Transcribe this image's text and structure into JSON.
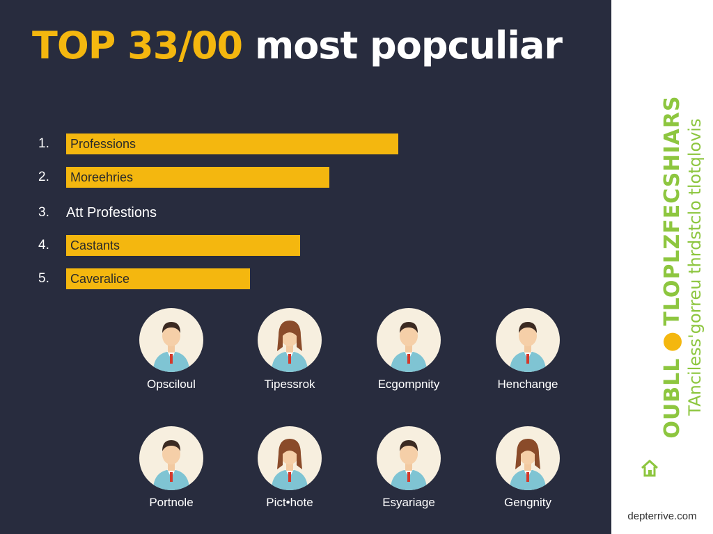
{
  "title": {
    "accent": "TOP 33/00",
    "main": " most popculiar"
  },
  "ranking": [
    {
      "number": "1.",
      "label": "Professions",
      "bar_fraction": 1.0
    },
    {
      "number": "2.",
      "label": "Moreehries",
      "bar_fraction": 0.792
    },
    {
      "number": "3.",
      "label": "Att Profestions",
      "bar_fraction": 0
    },
    {
      "number": "4.",
      "label": "Castants",
      "bar_fraction": 0.704
    },
    {
      "number": "5.",
      "label": "Caveralice",
      "bar_fraction": 0.553
    }
  ],
  "people": [
    {
      "label": "Opsciloul",
      "icon": "man-icon"
    },
    {
      "label": "Tipessrok",
      "icon": "woman-icon"
    },
    {
      "label": "Ecgompnity",
      "icon": "man-icon"
    },
    {
      "label": "Henchange",
      "icon": "man-icon"
    },
    {
      "label": "Portnole",
      "icon": "man-icon"
    },
    {
      "label": "Pict•hote",
      "icon": "woman-icon"
    },
    {
      "label": "Esyariage",
      "icon": "man-icon"
    },
    {
      "label": "Gengnity",
      "icon": "woman-icon"
    }
  ],
  "sidebar": {
    "bold_text_start": "OUBLL",
    "bold_text_end": "TLOPLZFECSHIARS",
    "light_text": "TAnciless'gorreu thrdstclo tlotqlovis",
    "url": "depterrive.com"
  },
  "colors": {
    "background": "#282c3e",
    "accent": "#f4b70f",
    "side_accent": "#8dc63f"
  }
}
